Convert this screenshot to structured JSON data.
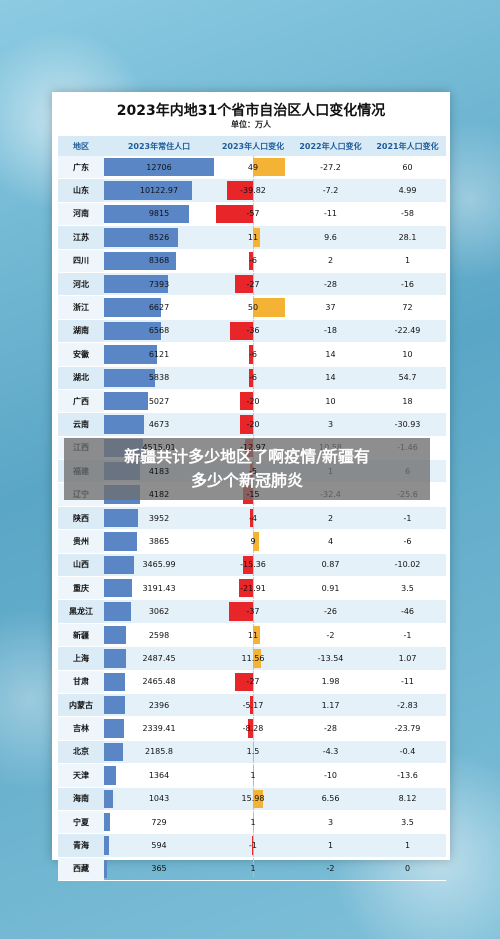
{
  "title": "2023年内地31个省市自治区人口变化情况",
  "unit": "单位：万人",
  "headers": [
    "地区",
    "2023年常住人口",
    "2023年人口变化",
    "2022年人口变化",
    "2021年人口变化"
  ],
  "rows": [
    {
      "region": "广东",
      "pop": "12706",
      "chg": "49",
      "c22": "-27.2",
      "c21": "60"
    },
    {
      "region": "山东",
      "pop": "10122.97",
      "chg": "-39.82",
      "c22": "-7.2",
      "c21": "4.99"
    },
    {
      "region": "河南",
      "pop": "9815",
      "chg": "-57",
      "c22": "-11",
      "c21": "-58"
    },
    {
      "region": "江苏",
      "pop": "8526",
      "chg": "11",
      "c22": "9.6",
      "c21": "28.1"
    },
    {
      "region": "四川",
      "pop": "8368",
      "chg": "-6",
      "c22": "2",
      "c21": "1"
    },
    {
      "region": "河北",
      "pop": "7393",
      "chg": "-27",
      "c22": "-28",
      "c21": "-16"
    },
    {
      "region": "浙江",
      "pop": "6627",
      "chg": "50",
      "c22": "37",
      "c21": "72"
    },
    {
      "region": "湖南",
      "pop": "6568",
      "chg": "-36",
      "c22": "-18",
      "c21": "-22.49"
    },
    {
      "region": "安徽",
      "pop": "6121",
      "chg": "-6",
      "c22": "14",
      "c21": "10"
    },
    {
      "region": "湖北",
      "pop": "5838",
      "chg": "-6",
      "c22": "14",
      "c21": "54.7"
    },
    {
      "region": "广西",
      "pop": "5027",
      "chg": "-20",
      "c22": "10",
      "c21": "18"
    },
    {
      "region": "云南",
      "pop": "4673",
      "chg": "-20",
      "c22": "3",
      "c21": "-30.93"
    },
    {
      "region": "江西",
      "pop": "4515.01",
      "chg": "-12.97",
      "c22": "10.58",
      "c21": "-1.46"
    },
    {
      "region": "福建",
      "pop": "4183",
      "chg": "-5",
      "c22": "1",
      "c21": "6"
    },
    {
      "region": "辽宁",
      "pop": "4182",
      "chg": "-15",
      "c22": "-32.4",
      "c21": "-25.6"
    },
    {
      "region": "陕西",
      "pop": "3952",
      "chg": "-4",
      "c22": "2",
      "c21": "-1"
    },
    {
      "region": "贵州",
      "pop": "3865",
      "chg": "9",
      "c22": "4",
      "c21": "-6"
    },
    {
      "region": "山西",
      "pop": "3465.99",
      "chg": "-15.36",
      "c22": "0.87",
      "c21": "-10.02"
    },
    {
      "region": "重庆",
      "pop": "3191.43",
      "chg": "-21.91",
      "c22": "0.91",
      "c21": "3.5"
    },
    {
      "region": "黑龙江",
      "pop": "3062",
      "chg": "-37",
      "c22": "-26",
      "c21": "-46"
    },
    {
      "region": "新疆",
      "pop": "2598",
      "chg": "11",
      "c22": "-2",
      "c21": "-1"
    },
    {
      "region": "上海",
      "pop": "2487.45",
      "chg": "11.56",
      "c22": "-13.54",
      "c21": "1.07"
    },
    {
      "region": "甘肃",
      "pop": "2465.48",
      "chg": "-27",
      "c22": "1.98",
      "c21": "-11"
    },
    {
      "region": "内蒙古",
      "pop": "2396",
      "chg": "-5.17",
      "c22": "1.17",
      "c21": "-2.83"
    },
    {
      "region": "吉林",
      "pop": "2339.41",
      "chg": "-8.28",
      "c22": "-28",
      "c21": "-23.79"
    },
    {
      "region": "北京",
      "pop": "2185.8",
      "chg": "1.5",
      "c22": "-4.3",
      "c21": "-0.4"
    },
    {
      "region": "天津",
      "pop": "1364",
      "chg": "1",
      "c22": "-10",
      "c21": "-13.6"
    },
    {
      "region": "海南",
      "pop": "1043",
      "chg": "15.98",
      "c22": "6.56",
      "c21": "8.12"
    },
    {
      "region": "宁夏",
      "pop": "729",
      "chg": "1",
      "c22": "3",
      "c21": "3.5"
    },
    {
      "region": "青海",
      "pop": "594",
      "chg": "-1",
      "c22": "1",
      "c21": "1"
    },
    {
      "region": "西藏",
      "pop": "365",
      "chg": "1",
      "c22": "-2",
      "c21": "0"
    }
  ],
  "overlay_line1": "新疆共计多少地区了啊疫情/新疆有",
  "overlay_line2": "多少个新冠肺炎",
  "colors": {
    "pop_bar": "#5b86c5",
    "increase": "#f5b335",
    "decrease": "#e8262a"
  }
}
